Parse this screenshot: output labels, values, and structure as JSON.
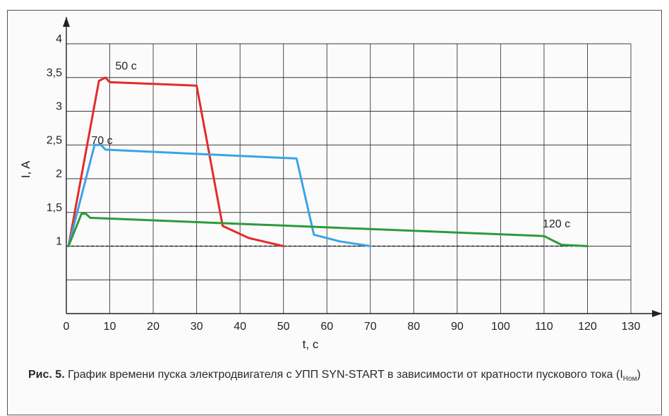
{
  "chart_data": {
    "type": "line",
    "xlabel": "t, с",
    "ylabel": "I, A",
    "xlim": [
      0,
      130
    ],
    "ylim": [
      0,
      4
    ],
    "x_ticks": [
      "0",
      "10",
      "20",
      "30",
      "40",
      "50",
      "60",
      "70",
      "80",
      "90",
      "100",
      "110",
      "120",
      "130"
    ],
    "y_ticks": [
      {
        "value": 1,
        "label": "1"
      },
      {
        "value": 1.5,
        "label": "1,5"
      },
      {
        "value": 2,
        "label": "2"
      },
      {
        "value": 2.5,
        "label": "2,5"
      },
      {
        "value": 3,
        "label": "3"
      },
      {
        "value": 3.5,
        "label": "3,5"
      },
      {
        "value": 4,
        "label": "4"
      }
    ],
    "grid": true,
    "reference_line": {
      "y": 1,
      "style": "dashed"
    },
    "series": [
      {
        "label": "50 с",
        "color": "#e52a2a",
        "points": [
          [
            0.5,
            1.0
          ],
          [
            7.5,
            3.45
          ],
          [
            9,
            3.5
          ],
          [
            10,
            3.43
          ],
          [
            30,
            3.38
          ],
          [
            36,
            1.3
          ],
          [
            42,
            1.12
          ],
          [
            50,
            1.0
          ]
        ]
      },
      {
        "label": "70 с",
        "color": "#3aa4e6",
        "points": [
          [
            0.5,
            1.0
          ],
          [
            6.5,
            2.5
          ],
          [
            8,
            2.5
          ],
          [
            9,
            2.43
          ],
          [
            53,
            2.3
          ],
          [
            57,
            1.17
          ],
          [
            63,
            1.07
          ],
          [
            70,
            1.0
          ]
        ]
      },
      {
        "label": "120 с",
        "color": "#2e9a3a",
        "points": [
          [
            0.5,
            1.0
          ],
          [
            3.5,
            1.48
          ],
          [
            4.5,
            1.48
          ],
          [
            5.5,
            1.42
          ],
          [
            110,
            1.15
          ],
          [
            114,
            1.02
          ],
          [
            120,
            1.0
          ]
        ]
      }
    ]
  },
  "caption": {
    "lead": "Рис. 5.",
    "text": "График времени пуска электродвигателя с УПП SYN-START в зависимости от кратности пускового тока (I",
    "sub": "Ном",
    "close": ")"
  }
}
